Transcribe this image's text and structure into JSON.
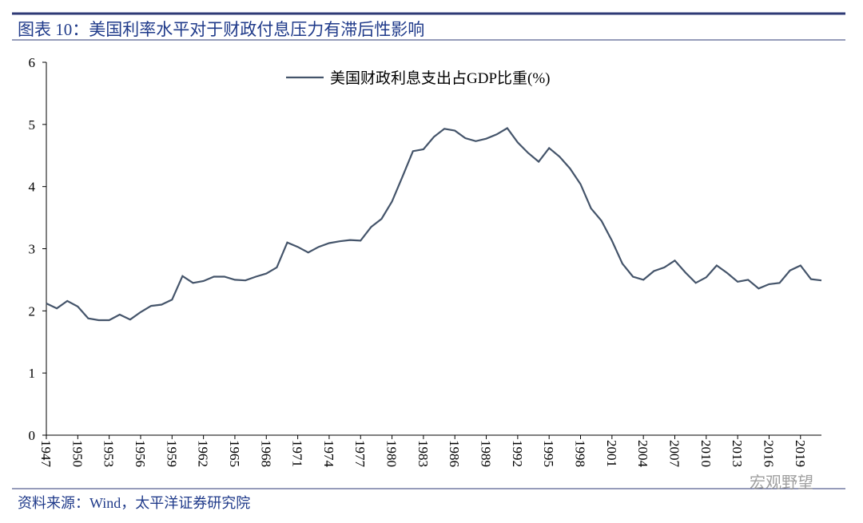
{
  "header": {
    "title": "图表 10：美国利率水平对于财政付息压力有滞后性影响"
  },
  "chart_data": {
    "type": "line",
    "x": [
      1947,
      1948,
      1949,
      1950,
      1951,
      1952,
      1953,
      1954,
      1955,
      1956,
      1957,
      1958,
      1959,
      1960,
      1961,
      1962,
      1963,
      1964,
      1965,
      1966,
      1967,
      1968,
      1969,
      1970,
      1971,
      1972,
      1973,
      1974,
      1975,
      1976,
      1977,
      1978,
      1979,
      1980,
      1981,
      1982,
      1983,
      1984,
      1985,
      1986,
      1987,
      1988,
      1989,
      1990,
      1991,
      1992,
      1993,
      1994,
      1995,
      1996,
      1997,
      1998,
      1999,
      2000,
      2001,
      2002,
      2003,
      2004,
      2005,
      2006,
      2007,
      2008,
      2009,
      2010,
      2011,
      2012,
      2013,
      2014,
      2015,
      2016,
      2017,
      2018,
      2019,
      2020,
      2021
    ],
    "series": [
      {
        "name": "美国财政利息支出占GDP比重(%)",
        "color": "#44546a",
        "values": [
          2.12,
          2.04,
          2.16,
          2.07,
          1.88,
          1.85,
          1.85,
          1.94,
          1.86,
          1.98,
          2.08,
          2.1,
          2.18,
          2.56,
          2.45,
          2.48,
          2.55,
          2.55,
          2.5,
          2.49,
          2.55,
          2.6,
          2.7,
          3.1,
          3.03,
          2.94,
          3.03,
          3.09,
          3.12,
          3.14,
          3.13,
          3.35,
          3.48,
          3.76,
          4.16,
          4.57,
          4.6,
          4.8,
          4.93,
          4.9,
          4.78,
          4.73,
          4.77,
          4.84,
          4.94,
          4.71,
          4.54,
          4.4,
          4.62,
          4.48,
          4.29,
          4.04,
          3.65,
          3.45,
          3.13,
          2.76,
          2.55,
          2.5,
          2.64,
          2.7,
          2.81,
          2.62,
          2.45,
          2.54,
          2.73,
          2.61,
          2.47,
          2.5,
          2.36,
          2.43,
          2.45,
          2.65,
          2.73,
          2.51,
          2.49
        ]
      }
    ],
    "xlim": [
      1947,
      2021
    ],
    "xticks": [
      1947,
      1950,
      1953,
      1956,
      1959,
      1962,
      1965,
      1968,
      1971,
      1974,
      1977,
      1980,
      1983,
      1986,
      1989,
      1992,
      1995,
      1998,
      2001,
      2004,
      2007,
      2010,
      2013,
      2016,
      2019
    ],
    "ylim": [
      0,
      6
    ],
    "yticks": [
      0,
      1,
      2,
      3,
      4,
      5,
      6
    ],
    "legend": "top"
  },
  "footer": {
    "source": "资料来源：Wind，太平洋证券研究院",
    "watermark": "宏观野望"
  }
}
